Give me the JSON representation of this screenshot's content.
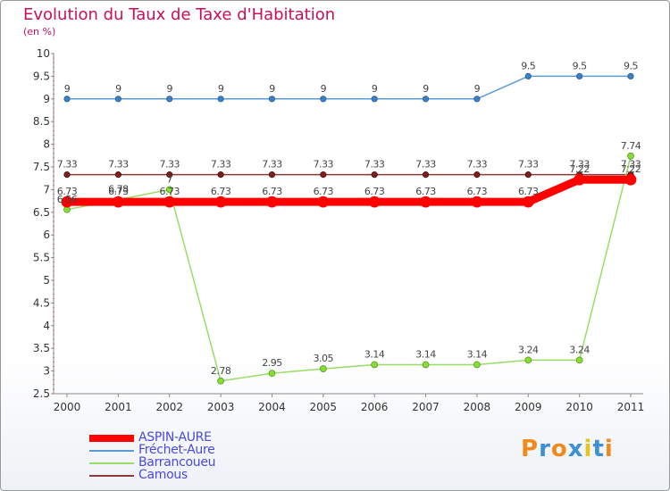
{
  "title": "Evolution du Taux de Taxe d'Habitation",
  "subtitle": "(en %)",
  "logo": {
    "text": "Proxiti",
    "letter_colors": [
      "#f08a1c",
      "#3d8fd6",
      "#f08a1c",
      "#3d8fd6",
      "#e8c51c",
      "#3d8fd6",
      "#f08a1c"
    ]
  },
  "chart_data": {
    "type": "line",
    "title": "Evolution du Taux de Taxe d'Habitation",
    "subtitle": "(en %)",
    "xlabel": "",
    "ylabel": "",
    "x": [
      "2000",
      "2001",
      "2002",
      "2003",
      "2004",
      "2005",
      "2006",
      "2007",
      "2008",
      "2009",
      "2010",
      "2011"
    ],
    "ylim": [
      2.5,
      10
    ],
    "yticks": [
      "2.5",
      "3",
      "3.5",
      "4",
      "4.5",
      "5",
      "5.5",
      "6",
      "6.5",
      "7",
      "7.5",
      "8",
      "8.5",
      "9",
      "9.5",
      "10"
    ],
    "grid": false,
    "legend_position": "bottom-left",
    "series": [
      {
        "name": "ASPIN-AURE",
        "color": "#ff0000",
        "values": [
          6.73,
          6.73,
          6.73,
          6.73,
          6.73,
          6.73,
          6.73,
          6.73,
          6.73,
          6.73,
          7.22,
          7.22
        ],
        "labels": [
          "6.73",
          "6.73",
          "6.73",
          "6.73",
          "6.73",
          "6.73",
          "6.73",
          "6.73",
          "6.73",
          "6.73",
          "7.22",
          "7.22"
        ]
      },
      {
        "name": "Fréchet-Aure",
        "color": "#5b9bd5",
        "values": [
          9,
          9,
          9,
          9,
          9,
          9,
          9,
          9,
          9,
          9.5,
          9.5,
          9.5
        ],
        "labels": [
          "9",
          "9",
          "9",
          "9",
          "9",
          "9",
          "9",
          "9",
          "9",
          "9.5",
          "9.5",
          "9.5"
        ]
      },
      {
        "name": "Barrancoueu",
        "color": "#99dd66",
        "values": [
          6.56,
          6.78,
          7,
          2.78,
          2.95,
          3.05,
          3.14,
          3.14,
          3.14,
          3.24,
          3.24,
          7.74
        ],
        "labels": [
          "6.56",
          "6.78",
          "7",
          "2.78",
          "2.95",
          "3.05",
          "3.14",
          "3.14",
          "3.14",
          "3.24",
          "3.24",
          "7.74"
        ]
      },
      {
        "name": "Camous",
        "color": "#8b3a3a",
        "values": [
          7.33,
          7.33,
          7.33,
          7.33,
          7.33,
          7.33,
          7.33,
          7.33,
          7.33,
          7.33,
          7.33,
          7.33
        ],
        "labels": [
          "7.33",
          "7.33",
          "7.33",
          "7.33",
          "7.33",
          "7.33",
          "7.33",
          "7.33",
          "7.33",
          "7.33",
          "7.33",
          "7.33"
        ]
      }
    ]
  }
}
